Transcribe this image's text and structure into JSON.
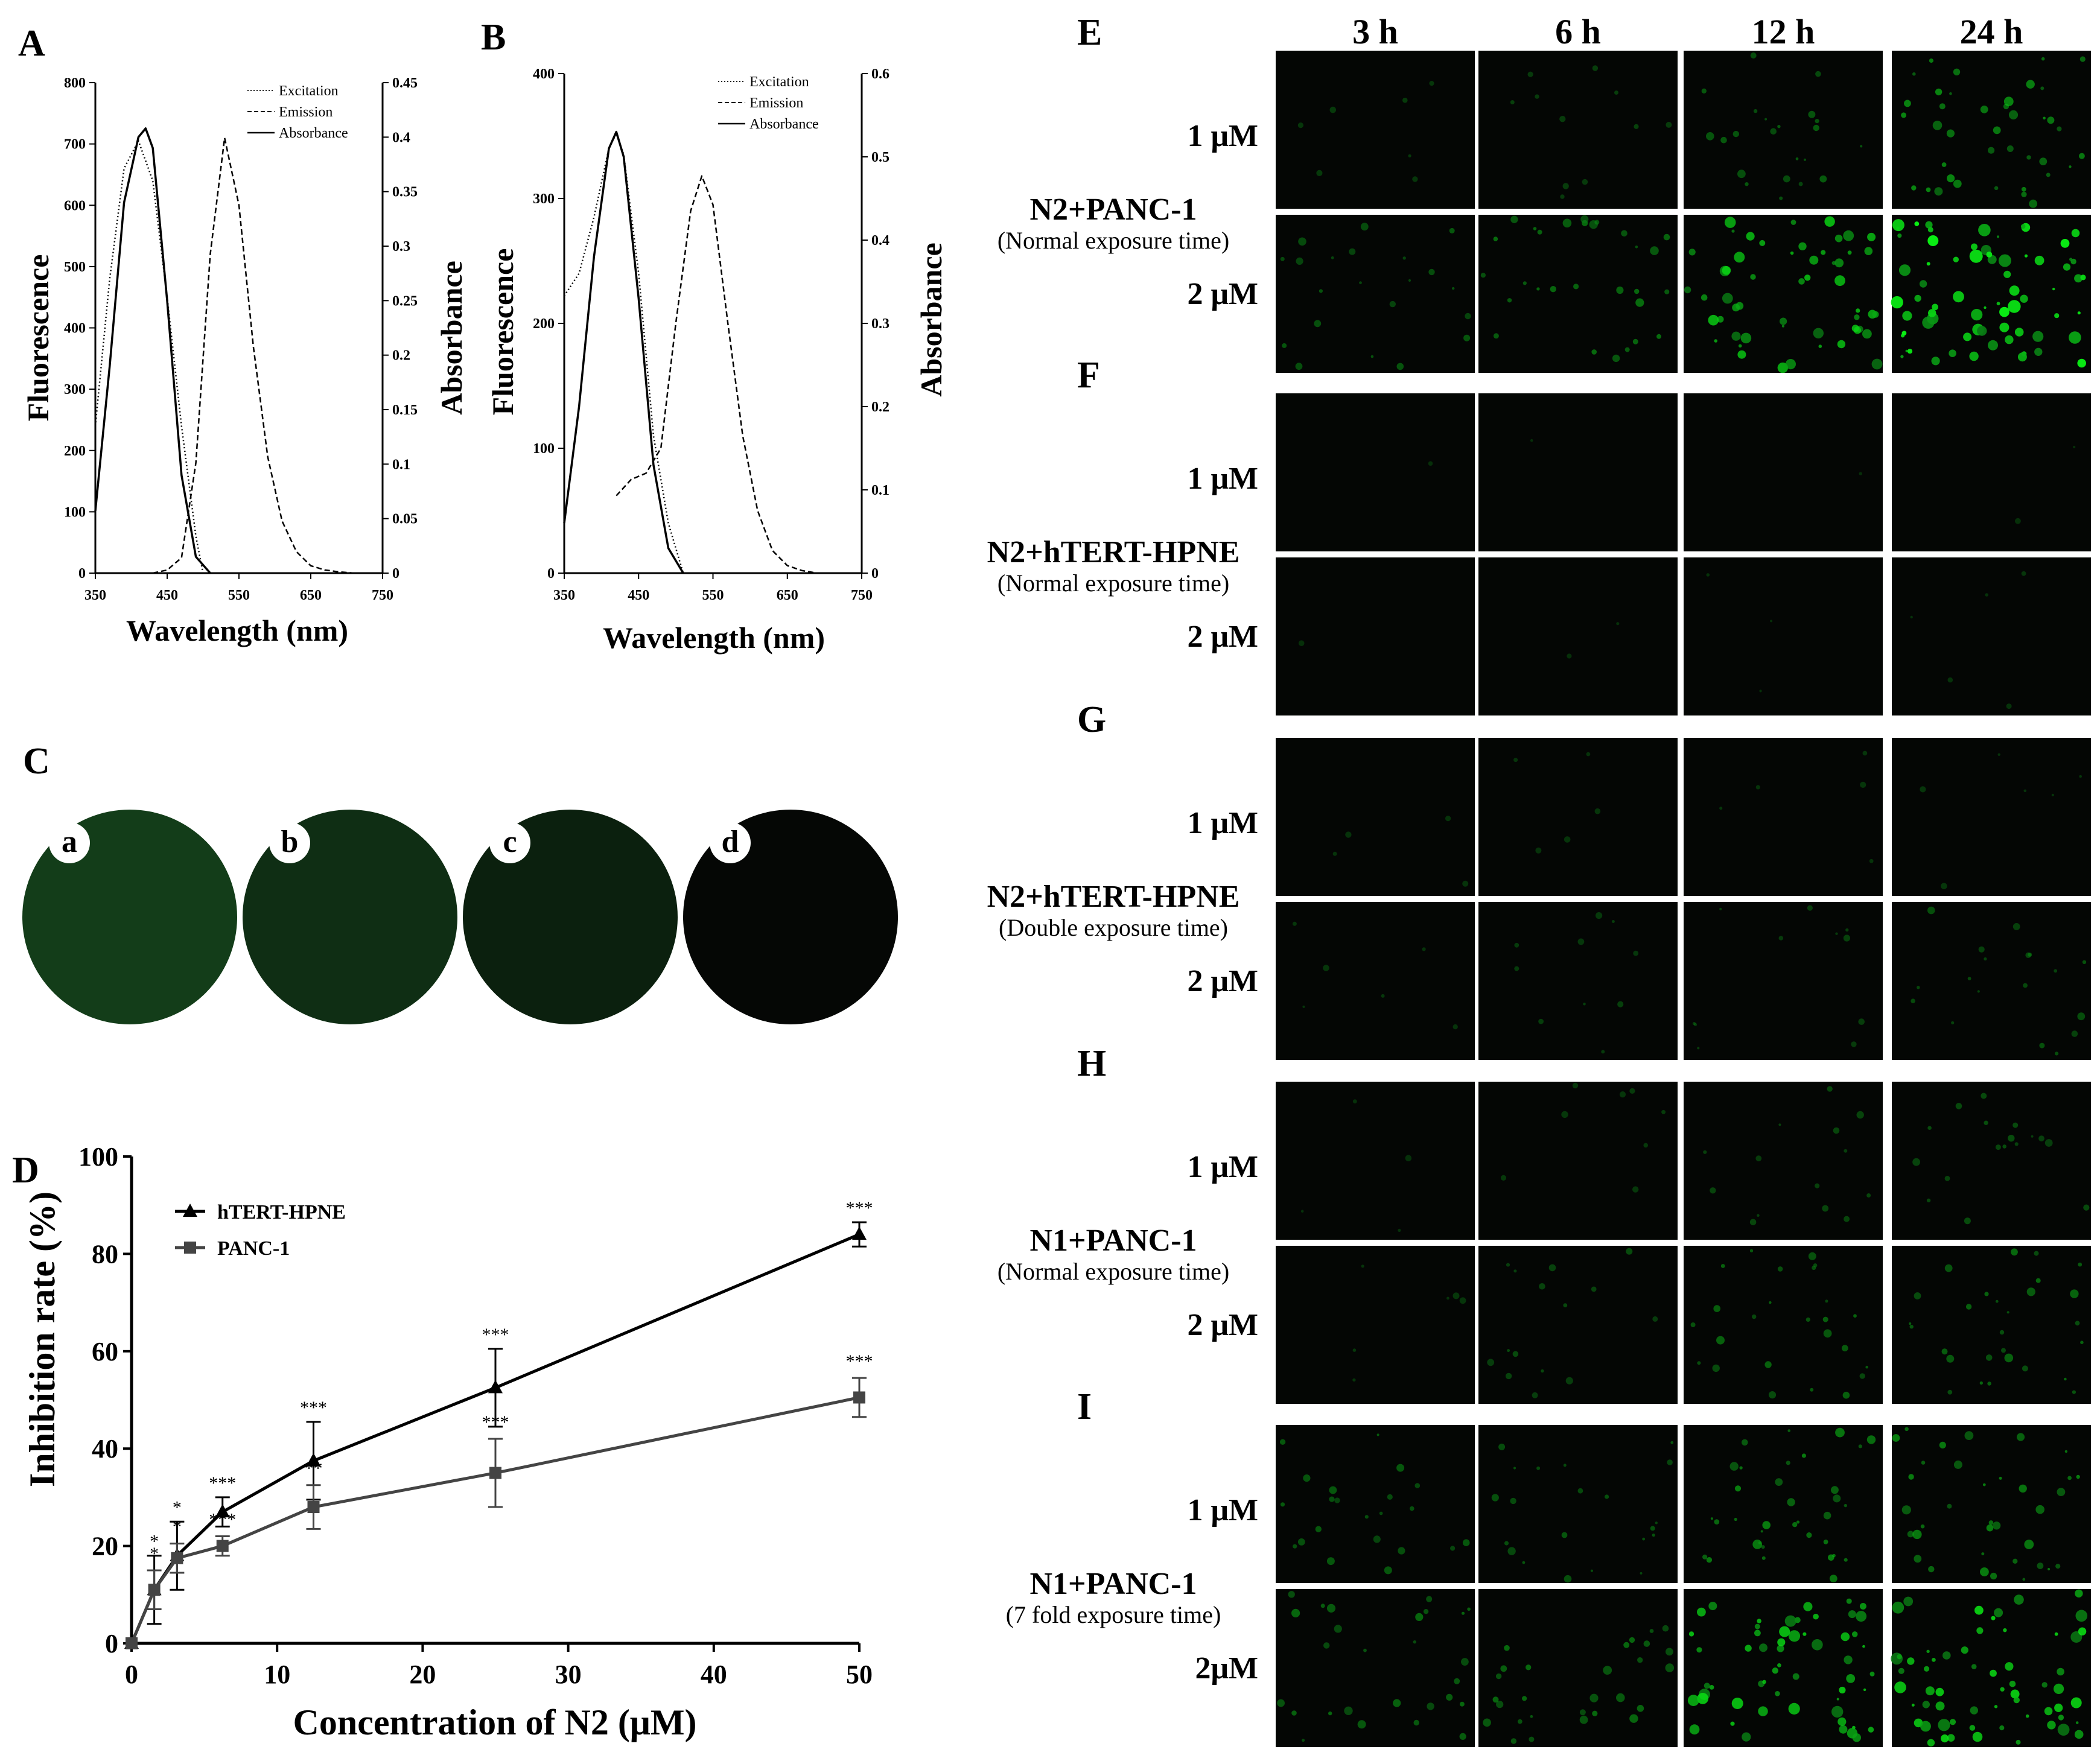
{
  "panels": {
    "A": {
      "label": "A",
      "ylabel_left": "Fluorescence",
      "ylabel_right": "Absorbance",
      "xlabel": "Wavelength (nm)",
      "x_ticks": [
        "350",
        "450",
        "550",
        "650",
        "750"
      ],
      "y_left_ticks": [
        "0",
        "100",
        "200",
        "300",
        "400",
        "500",
        "600",
        "700",
        "800"
      ],
      "y_right_ticks": [
        "0",
        "0.05",
        "0.1",
        "0.15",
        "0.2",
        "0.25",
        "0.3",
        "0.35",
        "0.4",
        "0.45"
      ],
      "legend": [
        "Excitation",
        "Emission",
        "Absorbance"
      ]
    },
    "B": {
      "label": "B",
      "ylabel_left": "Fluorescence",
      "ylabel_right": "Absorbance",
      "xlabel": "Wavelength (nm)",
      "x_ticks": [
        "350",
        "450",
        "550",
        "650",
        "750"
      ],
      "y_left_ticks": [
        "0",
        "100",
        "200",
        "300",
        "400"
      ],
      "y_right_ticks": [
        "0",
        "0.1",
        "0.2",
        "0.3",
        "0.4",
        "0.5",
        "0.6"
      ],
      "legend": [
        "Excitation",
        "Emission",
        "Absorbance"
      ]
    },
    "C": {
      "label": "C",
      "wells": [
        {
          "label": "a",
          "color": "#133d19"
        },
        {
          "label": "b",
          "color": "#0f2e14"
        },
        {
          "label": "c",
          "color": "#0b200e"
        },
        {
          "label": "d",
          "color": "#050705"
        }
      ]
    },
    "D": {
      "label": "D",
      "xlabel": "Concentration of  N2 (μM)",
      "ylabel": "Inhibition rate (%)",
      "x_ticks": [
        "0",
        "10",
        "20",
        "30",
        "40",
        "50"
      ],
      "y_ticks": [
        "0",
        "20",
        "40",
        "60",
        "80",
        "100"
      ]
    },
    "microscopy": {
      "columns": [
        "3 h",
        "6 h",
        "12 h",
        "24 h"
      ],
      "groups": [
        {
          "label": "E",
          "title": "N2+PANC-1",
          "subtitle": "(Normal exposure time)",
          "rows": [
            "1 μM",
            "2 μM"
          ],
          "brightness": [
            [
              0.1,
              0.16,
              0.32,
              0.55
            ],
            [
              0.3,
              0.42,
              0.75,
              1.0
            ]
          ]
        },
        {
          "label": "F",
          "title": "N2+hTERT-HPNE",
          "subtitle": "(Normal exposure time)",
          "rows": [
            "1 μM",
            "2 μM"
          ],
          "brightness": [
            [
              0.02,
              0.01,
              0.02,
              0.03
            ],
            [
              0.02,
              0.03,
              0.04,
              0.07
            ]
          ]
        },
        {
          "label": "G",
          "title": "N2+hTERT-HPNE",
          "subtitle": "(Double exposure time)",
          "rows": [
            "1 μM",
            "2 μM"
          ],
          "brightness": [
            [
              0.06,
              0.07,
              0.07,
              0.08
            ],
            [
              0.08,
              0.14,
              0.16,
              0.26
            ]
          ]
        },
        {
          "label": "H",
          "title": "N1+PANC-1",
          "subtitle": "(Normal exposure time)",
          "rows": [
            "1 μM",
            "2 μM"
          ],
          "brightness": [
            [
              0.05,
              0.12,
              0.2,
              0.24
            ],
            [
              0.09,
              0.22,
              0.36,
              0.4
            ]
          ]
        },
        {
          "label": "I",
          "title": "N1+PANC-1",
          "subtitle": "(7 fold exposure time)",
          "rows": [
            "1 μM",
            "2μM"
          ],
          "brightness": [
            [
              0.32,
              0.3,
              0.5,
              0.5
            ],
            [
              0.38,
              0.4,
              0.8,
              0.85
            ]
          ]
        }
      ]
    }
  },
  "chart_data": [
    {
      "type": "line",
      "panel": "A",
      "xlim": [
        350,
        750
      ],
      "ylim_left": [
        0,
        800
      ],
      "ylim_right": [
        0,
        0.45
      ],
      "legend_position": "top-right",
      "series": [
        {
          "name": "Excitation",
          "axis": "left",
          "style": "dotted",
          "x": [
            350,
            370,
            390,
            410,
            430,
            450,
            470,
            490,
            500
          ],
          "y": [
            240,
            480,
            660,
            705,
            640,
            450,
            240,
            60,
            0
          ]
        },
        {
          "name": "Emission",
          "axis": "left",
          "style": "dashed",
          "x": [
            430,
            450,
            470,
            490,
            510,
            530,
            550,
            570,
            590,
            610,
            630,
            650,
            670,
            690,
            710,
            730,
            750
          ],
          "y": [
            0,
            5,
            25,
            180,
            520,
            710,
            600,
            370,
            190,
            85,
            35,
            12,
            5,
            2,
            0,
            0,
            0
          ]
        },
        {
          "name": "Absorbance",
          "axis": "right",
          "style": "solid",
          "x": [
            350,
            370,
            390,
            410,
            420,
            430,
            450,
            470,
            490,
            510
          ],
          "y": [
            0.057,
            0.19,
            0.34,
            0.4,
            0.408,
            0.39,
            0.25,
            0.09,
            0.015,
            0.0
          ]
        }
      ]
    },
    {
      "type": "line",
      "panel": "B",
      "xlim": [
        350,
        750
      ],
      "ylim_left": [
        0,
        400
      ],
      "ylim_right": [
        0,
        0.6
      ],
      "legend_position": "top-right",
      "series": [
        {
          "name": "Excitation",
          "axis": "left",
          "style": "dotted",
          "x": [
            350,
            370,
            390,
            410,
            420,
            430,
            450,
            470,
            490,
            510
          ],
          "y": [
            222,
            240,
            285,
            340,
            352,
            335,
            240,
            110,
            40,
            0
          ]
        },
        {
          "name": "Emission",
          "axis": "left",
          "style": "dashed",
          "x": [
            420,
            440,
            460,
            470,
            480,
            500,
            520,
            535,
            550,
            570,
            590,
            610,
            630,
            650,
            670,
            690
          ],
          "y": [
            62,
            75,
            80,
            90,
            100,
            200,
            290,
            318,
            295,
            200,
            110,
            50,
            18,
            6,
            2,
            0
          ]
        },
        {
          "name": "Absorbance",
          "axis": "right",
          "style": "solid",
          "x": [
            350,
            370,
            390,
            410,
            420,
            430,
            450,
            470,
            490,
            510
          ],
          "y": [
            0.06,
            0.2,
            0.38,
            0.51,
            0.53,
            0.5,
            0.33,
            0.13,
            0.03,
            0.0
          ]
        }
      ]
    },
    {
      "type": "line",
      "panel": "D",
      "xlim": [
        0,
        50
      ],
      "ylim": [
        0,
        100
      ],
      "legend_position": "top-left",
      "series": [
        {
          "name": "hTERT-HPNE",
          "marker": "triangle",
          "x": [
            0,
            1.56,
            3.125,
            6.25,
            12.5,
            25,
            50
          ],
          "y": [
            0,
            11,
            18,
            27,
            37.5,
            52.5,
            84
          ],
          "err": [
            0,
            7,
            7,
            3,
            8,
            8,
            2.5
          ],
          "sig": [
            "",
            "*",
            "*",
            "***",
            "***",
            "***",
            "***"
          ]
        },
        {
          "name": "PANC-1",
          "marker": "square",
          "x": [
            0,
            1.56,
            3.125,
            6.25,
            12.5,
            25,
            50
          ],
          "y": [
            0,
            11,
            17.5,
            20,
            28,
            35,
            50.5
          ],
          "err": [
            0,
            4,
            3,
            2,
            4.5,
            7,
            4
          ],
          "sig": [
            "",
            "*",
            "*",
            "***",
            "**",
            "***",
            "***"
          ]
        }
      ]
    }
  ]
}
